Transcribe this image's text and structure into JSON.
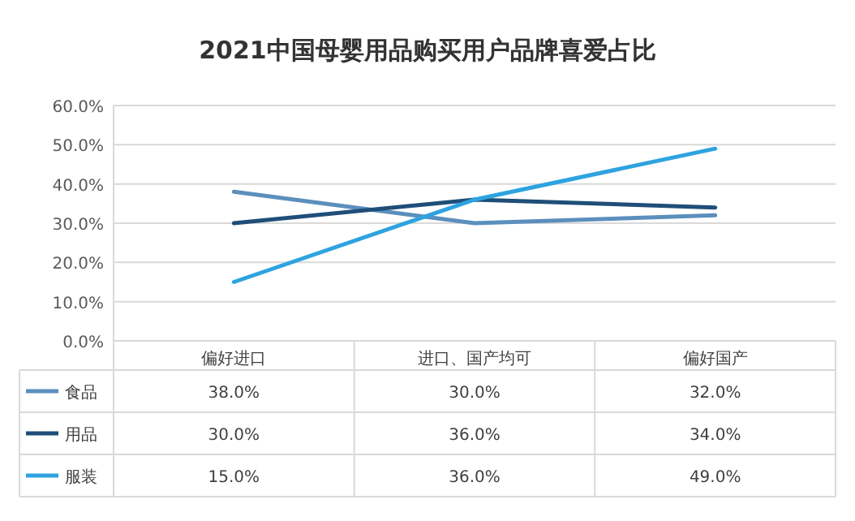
{
  "chart_data": {
    "type": "line",
    "title": "2021中国母婴用品购买用户品牌喜爱占比",
    "categories": [
      "偏好进口",
      "进口、国产均可",
      "偏好国产"
    ],
    "series": [
      {
        "name": "食品",
        "color": "#5b8fbd",
        "values": [
          38,
          30,
          32
        ],
        "value_labels": [
          "38.0%",
          "30.0%",
          "32.0%"
        ]
      },
      {
        "name": "用品",
        "color": "#1f4e79",
        "values": [
          30,
          36,
          34
        ],
        "value_labels": [
          "30.0%",
          "36.0%",
          "34.0%"
        ]
      },
      {
        "name": "服装",
        "color": "#2ea3e0",
        "values": [
          15,
          36,
          49
        ],
        "value_labels": [
          "15.0%",
          "36.0%",
          "49.0%"
        ]
      }
    ],
    "ylim": [
      0,
      60
    ],
    "yticks": [
      {
        "value": 0,
        "label": "0.0%"
      },
      {
        "value": 10,
        "label": "10.0%"
      },
      {
        "value": 20,
        "label": "20.0%"
      },
      {
        "value": 30,
        "label": "30.0%"
      },
      {
        "value": 40,
        "label": "40.0%"
      },
      {
        "value": 50,
        "label": "50.0%"
      },
      {
        "value": 60,
        "label": "60.0%"
      }
    ],
    "grid": "y",
    "legend": "bottom",
    "marker": "none",
    "line_style": "solid"
  }
}
